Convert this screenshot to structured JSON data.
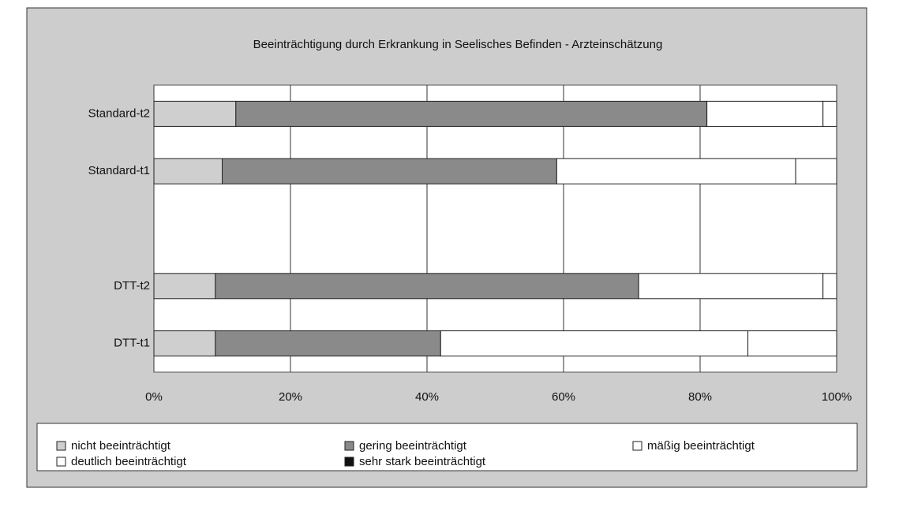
{
  "chart_data": {
    "type": "stacked_bar_horizontal",
    "title": "Beeinträchtigung durch Erkrankung in Seelisches Befinden - Arzteinschätzung",
    "categories": [
      "Standard-t2",
      "Standard-t1",
      null,
      "DTT-t2",
      "DTT-t1"
    ],
    "series": [
      {
        "name": "nicht beeinträchtigt",
        "color": "#cfcfcf",
        "values": [
          12,
          10,
          null,
          9,
          9
        ]
      },
      {
        "name": "gering beeinträchtigt",
        "color": "#8a8a8a",
        "values": [
          69,
          49,
          null,
          62,
          33
        ]
      },
      {
        "name": "mäßig beeinträchtigt",
        "color": "#ffffff",
        "values": [
          17,
          35,
          null,
          27,
          45
        ]
      },
      {
        "name": "deutlich beeinträchtigt",
        "color": "#ffffff",
        "values": [
          2,
          6,
          null,
          2,
          13
        ]
      },
      {
        "name": "sehr stark beeinträchtigt",
        "color": "#111111",
        "values": [
          0,
          0,
          null,
          0,
          0
        ]
      }
    ],
    "xlim": [
      0,
      100
    ],
    "xticks": [
      {
        "value": 0,
        "label": "0%"
      },
      {
        "value": 20,
        "label": "20%"
      },
      {
        "value": 40,
        "label": "40%"
      },
      {
        "value": 60,
        "label": "60%"
      },
      {
        "value": 80,
        "label": "80%"
      },
      {
        "value": 100,
        "label": "100%"
      }
    ],
    "grid": true
  }
}
